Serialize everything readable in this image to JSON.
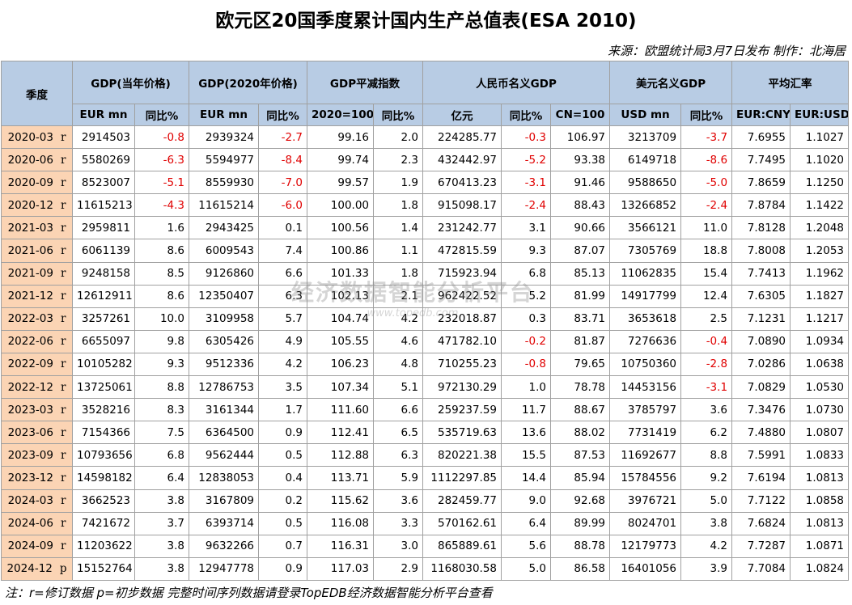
{
  "header": {
    "title": "欧元区20国季度累计国内生产总值表(ESA 2010)",
    "source": "来源：欧盟统计局3月7日发布 制作：北海居"
  },
  "table": {
    "corner": "季度",
    "groups": [
      "GDP(当年价格)",
      "GDP(2020年价格)",
      "GDP平减指数",
      "人民币名义GDP",
      "美元名义GDP",
      "平均汇率"
    ],
    "subheaders": [
      "EUR mn",
      "同比%",
      "EUR mn",
      "同比%",
      "2020=100",
      "同比%",
      "亿元",
      "同比%",
      "CN=100",
      "USD mn",
      "同比%",
      "EUR:CNY",
      "EUR:USD"
    ],
    "rows": [
      [
        "2020-03",
        "r",
        "2914503",
        "-0.8",
        "2939324",
        "-2.7",
        "99.16",
        "2.0",
        "224285.77",
        "-0.3",
        "106.97",
        "3213709",
        "-3.7",
        "7.6955",
        "1.1027"
      ],
      [
        "2020-06",
        "r",
        "5580269",
        "-6.3",
        "5594977",
        "-8.4",
        "99.74",
        "2.3",
        "432442.97",
        "-5.2",
        "93.38",
        "6149718",
        "-8.6",
        "7.7495",
        "1.1020"
      ],
      [
        "2020-09",
        "r",
        "8523007",
        "-5.1",
        "8559930",
        "-7.0",
        "99.57",
        "1.9",
        "670413.23",
        "-3.1",
        "91.46",
        "9588650",
        "-5.0",
        "7.8659",
        "1.1250"
      ],
      [
        "2020-12",
        "r",
        "11615213",
        "-4.3",
        "11615214",
        "-6.0",
        "100.00",
        "1.8",
        "915098.17",
        "-2.4",
        "88.43",
        "13266852",
        "-2.4",
        "7.8784",
        "1.1422"
      ],
      [
        "2021-03",
        "r",
        "2959811",
        "1.6",
        "2943425",
        "0.1",
        "100.56",
        "1.4",
        "231242.77",
        "3.1",
        "90.66",
        "3566121",
        "11.0",
        "7.8128",
        "1.2048"
      ],
      [
        "2021-06",
        "r",
        "6061139",
        "8.6",
        "6009543",
        "7.4",
        "100.86",
        "1.1",
        "472815.59",
        "9.3",
        "87.07",
        "7305769",
        "18.8",
        "7.8008",
        "1.2053"
      ],
      [
        "2021-09",
        "r",
        "9248158",
        "8.5",
        "9126860",
        "6.6",
        "101.33",
        "1.8",
        "715923.94",
        "6.8",
        "85.13",
        "11062835",
        "15.4",
        "7.7413",
        "1.1962"
      ],
      [
        "2021-12",
        "r",
        "12612911",
        "8.6",
        "12350407",
        "6.3",
        "102.13",
        "2.1",
        "962422.52",
        "5.2",
        "81.99",
        "14917799",
        "12.4",
        "7.6305",
        "1.1827"
      ],
      [
        "2022-03",
        "r",
        "3257261",
        "10.0",
        "3109958",
        "5.7",
        "104.74",
        "4.2",
        "232018.87",
        "0.3",
        "83.71",
        "3653618",
        "2.5",
        "7.1231",
        "1.1217"
      ],
      [
        "2022-06",
        "r",
        "6655097",
        "9.8",
        "6305426",
        "4.9",
        "105.55",
        "4.6",
        "471782.10",
        "-0.2",
        "81.87",
        "7276636",
        "-0.4",
        "7.0890",
        "1.0934"
      ],
      [
        "2022-09",
        "r",
        "10105282",
        "9.3",
        "9512336",
        "4.2",
        "106.23",
        "4.8",
        "710255.23",
        "-0.8",
        "79.65",
        "10750360",
        "-2.8",
        "7.0286",
        "1.0638"
      ],
      [
        "2022-12",
        "r",
        "13725061",
        "8.8",
        "12786753",
        "3.5",
        "107.34",
        "5.1",
        "972130.29",
        "1.0",
        "78.78",
        "14453156",
        "-3.1",
        "7.0829",
        "1.0530"
      ],
      [
        "2023-03",
        "r",
        "3528216",
        "8.3",
        "3161344",
        "1.7",
        "111.60",
        "6.6",
        "259237.59",
        "11.7",
        "88.67",
        "3785797",
        "3.6",
        "7.3476",
        "1.0730"
      ],
      [
        "2023-06",
        "r",
        "7154366",
        "7.5",
        "6364500",
        "0.9",
        "112.41",
        "6.5",
        "535719.63",
        "13.6",
        "88.02",
        "7731419",
        "6.2",
        "7.4880",
        "1.0807"
      ],
      [
        "2023-09",
        "r",
        "10793656",
        "6.8",
        "9562444",
        "0.5",
        "112.88",
        "6.3",
        "820221.38",
        "15.5",
        "87.53",
        "11692677",
        "8.8",
        "7.5991",
        "1.0833"
      ],
      [
        "2023-12",
        "r",
        "14598182",
        "6.4",
        "12838053",
        "0.4",
        "113.71",
        "5.9",
        "1112297.85",
        "14.4",
        "85.94",
        "15784556",
        "9.2",
        "7.6194",
        "1.0813"
      ],
      [
        "2024-03",
        "r",
        "3662523",
        "3.8",
        "3167809",
        "0.2",
        "115.62",
        "3.6",
        "282459.77",
        "9.0",
        "92.68",
        "3976721",
        "5.0",
        "7.7122",
        "1.0858"
      ],
      [
        "2024-06",
        "r",
        "7421672",
        "3.7",
        "6393714",
        "0.5",
        "116.08",
        "3.3",
        "570162.61",
        "6.4",
        "89.99",
        "8024701",
        "3.8",
        "7.6824",
        "1.0813"
      ],
      [
        "2024-09",
        "r",
        "11203622",
        "3.8",
        "9632266",
        "0.7",
        "116.31",
        "3.0",
        "865889.61",
        "5.6",
        "88.78",
        "12179773",
        "4.2",
        "7.7287",
        "1.0871"
      ],
      [
        "2024-12",
        "p",
        "15152764",
        "3.8",
        "12947778",
        "0.9",
        "117.03",
        "2.9",
        "1168030.58",
        "5.0",
        "86.58",
        "16401056",
        "3.9",
        "7.7084",
        "1.0824"
      ]
    ]
  },
  "watermark": {
    "name": "经济数据智能分析平台",
    "url": "www.topedb.com"
  },
  "footer": {
    "note": "注：r=修订数据 p=初步数据 完整时间序列数据请登录TopEDB经济数据智能分析平台查看"
  }
}
